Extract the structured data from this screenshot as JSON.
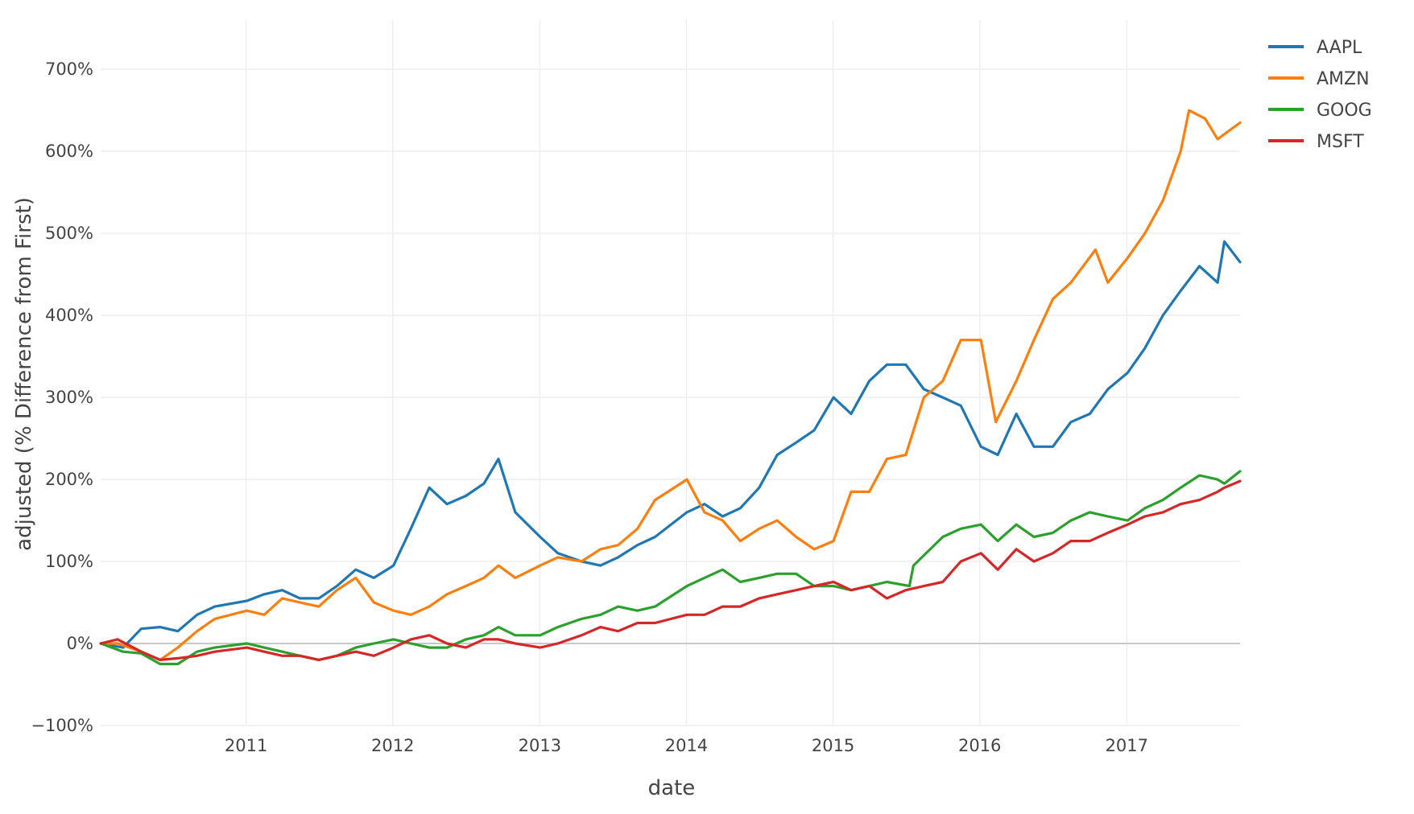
{
  "chart_data": {
    "type": "line",
    "title": "",
    "xlabel": "date",
    "ylabel": "adjusted (% Difference from First)",
    "xlim": [
      "2010-01-04",
      "2017-10-10"
    ],
    "ylim": [
      -100,
      760
    ],
    "x_ticks": [
      "2011",
      "2012",
      "2013",
      "2014",
      "2015",
      "2016",
      "2017"
    ],
    "y_ticks": [
      -100,
      0,
      100,
      200,
      300,
      400,
      500,
      600,
      700
    ],
    "y_tick_labels": [
      "−100%",
      "0%",
      "100%",
      "200%",
      "300%",
      "400%",
      "500%",
      "600%",
      "700%"
    ],
    "grid": true,
    "legend_position": "top-right",
    "series": [
      {
        "name": "AAPL",
        "color": "#1f77b4",
        "x": [
          "2010-01-04",
          "2010-03-01",
          "2010-04-15",
          "2010-06-01",
          "2010-07-15",
          "2010-09-01",
          "2010-10-15",
          "2011-01-03",
          "2011-02-15",
          "2011-04-01",
          "2011-05-15",
          "2011-07-01",
          "2011-08-15",
          "2011-10-01",
          "2011-11-15",
          "2012-01-03",
          "2012-02-15",
          "2012-04-01",
          "2012-05-15",
          "2012-07-01",
          "2012-08-15",
          "2012-09-20",
          "2012-11-01",
          "2013-01-02",
          "2013-02-15",
          "2013-04-15",
          "2013-06-01",
          "2013-07-15",
          "2013-09-01",
          "2013-10-15",
          "2014-01-02",
          "2014-02-15",
          "2014-04-01",
          "2014-05-15",
          "2014-07-01",
          "2014-08-15",
          "2014-10-01",
          "2014-11-15",
          "2015-01-02",
          "2015-02-15",
          "2015-04-01",
          "2015-05-15",
          "2015-07-01",
          "2015-08-15",
          "2015-10-01",
          "2015-11-15",
          "2016-01-04",
          "2016-02-15",
          "2016-04-01",
          "2016-05-15",
          "2016-07-01",
          "2016-08-15",
          "2016-10-01",
          "2016-11-15",
          "2017-01-03",
          "2017-02-15",
          "2017-04-01",
          "2017-05-15",
          "2017-07-01",
          "2017-08-15",
          "2017-09-01",
          "2017-10-10"
        ],
        "y": [
          0,
          -5,
          18,
          20,
          15,
          35,
          45,
          52,
          60,
          65,
          55,
          55,
          70,
          90,
          80,
          95,
          140,
          190,
          170,
          180,
          195,
          225,
          160,
          130,
          110,
          100,
          95,
          105,
          120,
          130,
          160,
          170,
          155,
          165,
          190,
          230,
          245,
          260,
          300,
          280,
          320,
          340,
          340,
          310,
          300,
          290,
          240,
          230,
          280,
          240,
          240,
          270,
          280,
          310,
          330,
          360,
          400,
          430,
          460,
          440,
          490,
          465
        ]
      },
      {
        "name": "AMZN",
        "color": "#ff7f0e",
        "x": [
          "2010-01-04",
          "2010-02-15",
          "2010-04-15",
          "2010-06-01",
          "2010-07-15",
          "2010-09-01",
          "2010-10-15",
          "2011-01-03",
          "2011-02-15",
          "2011-04-01",
          "2011-05-15",
          "2011-07-01",
          "2011-08-15",
          "2011-10-01",
          "2011-11-15",
          "2012-01-03",
          "2012-02-15",
          "2012-04-01",
          "2012-05-15",
          "2012-07-01",
          "2012-08-15",
          "2012-09-20",
          "2012-11-01",
          "2013-01-02",
          "2013-02-15",
          "2013-04-15",
          "2013-06-01",
          "2013-07-15",
          "2013-09-01",
          "2013-10-15",
          "2014-01-02",
          "2014-02-15",
          "2014-04-01",
          "2014-05-15",
          "2014-07-01",
          "2014-08-15",
          "2014-10-01",
          "2014-11-15",
          "2015-01-02",
          "2015-02-15",
          "2015-04-01",
          "2015-05-15",
          "2015-07-01",
          "2015-08-15",
          "2015-10-01",
          "2015-11-15",
          "2016-01-04",
          "2016-02-10",
          "2016-04-01",
          "2016-05-15",
          "2016-07-01",
          "2016-08-15",
          "2016-10-15",
          "2016-11-15",
          "2017-01-03",
          "2017-02-15",
          "2017-04-01",
          "2017-05-15",
          "2017-06-05",
          "2017-07-15",
          "2017-08-15",
          "2017-10-10"
        ],
        "y": [
          0,
          0,
          -10,
          -20,
          -5,
          15,
          30,
          40,
          35,
          55,
          50,
          45,
          65,
          80,
          50,
          40,
          35,
          45,
          60,
          70,
          80,
          95,
          80,
          95,
          105,
          100,
          115,
          120,
          140,
          175,
          200,
          160,
          150,
          125,
          140,
          150,
          130,
          115,
          125,
          185,
          185,
          225,
          230,
          300,
          320,
          370,
          370,
          270,
          320,
          370,
          420,
          440,
          480,
          440,
          470,
          500,
          540,
          600,
          650,
          640,
          615,
          635
        ]
      },
      {
        "name": "GOOG",
        "color": "#2ca02c",
        "x": [
          "2010-01-04",
          "2010-03-01",
          "2010-04-15",
          "2010-06-01",
          "2010-07-15",
          "2010-09-01",
          "2010-10-15",
          "2011-01-03",
          "2011-02-15",
          "2011-04-01",
          "2011-05-15",
          "2011-07-01",
          "2011-08-15",
          "2011-10-01",
          "2011-11-15",
          "2012-01-03",
          "2012-02-15",
          "2012-04-01",
          "2012-05-15",
          "2012-07-01",
          "2012-08-15",
          "2012-09-20",
          "2012-11-01",
          "2013-01-02",
          "2013-02-15",
          "2013-04-15",
          "2013-06-01",
          "2013-07-15",
          "2013-09-01",
          "2013-10-15",
          "2014-01-02",
          "2014-02-15",
          "2014-04-01",
          "2014-05-15",
          "2014-07-01",
          "2014-08-15",
          "2014-10-01",
          "2014-11-15",
          "2015-01-02",
          "2015-02-15",
          "2015-04-01",
          "2015-05-15",
          "2015-07-10",
          "2015-07-20",
          "2015-10-01",
          "2015-11-15",
          "2016-01-04",
          "2016-02-15",
          "2016-04-01",
          "2016-05-15",
          "2016-07-01",
          "2016-08-15",
          "2016-10-01",
          "2016-11-15",
          "2017-01-03",
          "2017-02-15",
          "2017-04-01",
          "2017-05-15",
          "2017-07-01",
          "2017-08-15",
          "2017-09-01",
          "2017-10-10"
        ],
        "y": [
          0,
          -10,
          -12,
          -25,
          -25,
          -10,
          -5,
          0,
          -5,
          -10,
          -15,
          -20,
          -15,
          -5,
          0,
          5,
          0,
          -5,
          -5,
          5,
          10,
          20,
          10,
          10,
          20,
          30,
          35,
          45,
          40,
          45,
          70,
          80,
          90,
          75,
          80,
          85,
          85,
          70,
          70,
          65,
          70,
          75,
          70,
          95,
          130,
          140,
          145,
          125,
          145,
          130,
          135,
          150,
          160,
          155,
          150,
          165,
          175,
          190,
          205,
          200,
          195,
          210
        ]
      },
      {
        "name": "MSFT",
        "color": "#d62728",
        "x": [
          "2010-01-04",
          "2010-02-15",
          "2010-04-15",
          "2010-06-01",
          "2010-07-15",
          "2010-09-01",
          "2010-10-15",
          "2011-01-03",
          "2011-02-15",
          "2011-04-01",
          "2011-05-15",
          "2011-07-01",
          "2011-08-15",
          "2011-10-01",
          "2011-11-15",
          "2012-01-03",
          "2012-02-15",
          "2012-04-01",
          "2012-05-15",
          "2012-07-01",
          "2012-08-15",
          "2012-09-20",
          "2012-11-01",
          "2013-01-02",
          "2013-02-15",
          "2013-04-15",
          "2013-06-01",
          "2013-07-15",
          "2013-09-01",
          "2013-10-15",
          "2014-01-02",
          "2014-02-15",
          "2014-04-01",
          "2014-05-15",
          "2014-07-01",
          "2014-08-15",
          "2014-10-01",
          "2014-11-15",
          "2015-01-02",
          "2015-02-15",
          "2015-04-01",
          "2015-05-15",
          "2015-07-01",
          "2015-08-15",
          "2015-10-01",
          "2015-11-15",
          "2016-01-04",
          "2016-02-15",
          "2016-04-01",
          "2016-05-15",
          "2016-07-01",
          "2016-08-15",
          "2016-10-01",
          "2016-11-15",
          "2017-01-03",
          "2017-02-15",
          "2017-04-01",
          "2017-05-15",
          "2017-07-01",
          "2017-08-15",
          "2017-09-01",
          "2017-10-10"
        ],
        "y": [
          0,
          5,
          -10,
          -20,
          -18,
          -15,
          -10,
          -5,
          -10,
          -15,
          -15,
          -20,
          -15,
          -10,
          -15,
          -5,
          5,
          10,
          0,
          -5,
          5,
          5,
          0,
          -5,
          0,
          10,
          20,
          15,
          25,
          25,
          35,
          35,
          45,
          45,
          55,
          60,
          65,
          70,
          75,
          65,
          70,
          55,
          65,
          70,
          75,
          100,
          110,
          90,
          115,
          100,
          110,
          125,
          125,
          135,
          145,
          155,
          160,
          170,
          175,
          185,
          190,
          198
        ]
      }
    ]
  }
}
